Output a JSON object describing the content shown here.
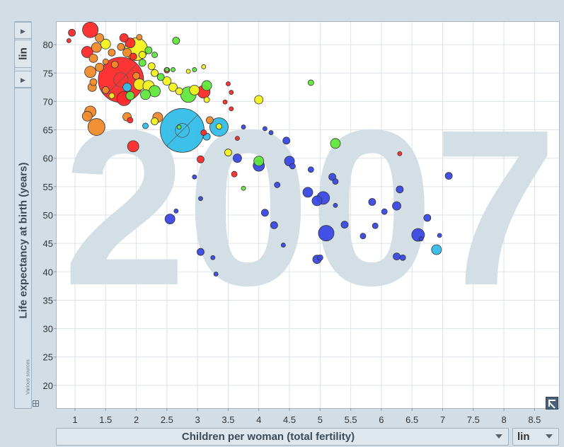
{
  "y_axis": {
    "scale": "lin",
    "label": "Life expectancy at birth (years)",
    "sources": "Various sources"
  },
  "x_axis": {
    "label": "Children per woman (total fertility)",
    "scale": "lin"
  },
  "chart_data": {
    "type": "scatter",
    "watermark": "2007",
    "xlabel": "Children per woman (total fertility)",
    "ylabel": "Life expectancy at birth (years)",
    "xlim": [
      0.7,
      8.9
    ],
    "ylim": [
      16,
      84
    ],
    "xticks": [
      "1",
      "1.5",
      "2",
      "2.5",
      "3",
      "3.5",
      "4",
      "4.5",
      "5",
      "5.5",
      "6",
      "6.5",
      "7",
      "7.5",
      "8",
      "8.5"
    ],
    "yticks": [
      "20",
      "25",
      "30",
      "35",
      "40",
      "45",
      "50",
      "55",
      "60",
      "65",
      "70",
      "75",
      "80"
    ],
    "grid": true,
    "colors": {
      "red": "#ff2a2a",
      "orange": "#f08a2a",
      "yellow": "#f2f21e",
      "green": "#62e83c",
      "cyan": "#33bde8",
      "blue": "#3a48e6"
    },
    "points": [
      {
        "x": 0.95,
        "y": 82.1,
        "s": 5,
        "c": "red"
      },
      {
        "x": 0.9,
        "y": 80.7,
        "s": 3,
        "c": "red"
      },
      {
        "x": 1.25,
        "y": 82.6,
        "s": 11,
        "c": "red"
      },
      {
        "x": 1.4,
        "y": 81.2,
        "s": 6,
        "c": "orange"
      },
      {
        "x": 1.35,
        "y": 79.5,
        "s": 7,
        "c": "orange"
      },
      {
        "x": 1.5,
        "y": 80.1,
        "s": 7,
        "c": "yellow"
      },
      {
        "x": 1.2,
        "y": 78.7,
        "s": 8,
        "c": "red"
      },
      {
        "x": 1.3,
        "y": 77.6,
        "s": 6,
        "c": "orange"
      },
      {
        "x": 1.6,
        "y": 78.6,
        "s": 5,
        "c": "orange"
      },
      {
        "x": 1.8,
        "y": 81.2,
        "s": 6,
        "c": "red"
      },
      {
        "x": 1.9,
        "y": 80.3,
        "s": 7,
        "c": "red"
      },
      {
        "x": 2.0,
        "y": 79.2,
        "s": 16,
        "c": "yellow"
      },
      {
        "x": 2.05,
        "y": 81.3,
        "s": 4,
        "c": "orange"
      },
      {
        "x": 2.1,
        "y": 78.2,
        "s": 5,
        "c": "yellow"
      },
      {
        "x": 2.2,
        "y": 79.0,
        "s": 5,
        "c": "green"
      },
      {
        "x": 1.75,
        "y": 79.6,
        "s": 5,
        "c": "orange"
      },
      {
        "x": 1.85,
        "y": 78.6,
        "s": 6,
        "c": "orange"
      },
      {
        "x": 1.95,
        "y": 77.9,
        "s": 5,
        "c": "red"
      },
      {
        "x": 2.3,
        "y": 78.2,
        "s": 4,
        "c": "green"
      },
      {
        "x": 2.1,
        "y": 76.8,
        "s": 5,
        "c": "green"
      },
      {
        "x": 2.25,
        "y": 76.2,
        "s": 5,
        "c": "yellow"
      },
      {
        "x": 2.3,
        "y": 75.0,
        "s": 5,
        "c": "yellow"
      },
      {
        "x": 2.4,
        "y": 74.3,
        "s": 5,
        "c": "green"
      },
      {
        "x": 2.5,
        "y": 75.5,
        "s": 4,
        "c": "red"
      },
      {
        "x": 2.5,
        "y": 75.6,
        "s": 3,
        "c": "green"
      },
      {
        "x": 2.6,
        "y": 75.6,
        "s": 3,
        "c": "green"
      },
      {
        "x": 2.95,
        "y": 75.6,
        "s": 3,
        "c": "green"
      },
      {
        "x": 2.85,
        "y": 75.3,
        "s": 3,
        "c": "yellow"
      },
      {
        "x": 3.1,
        "y": 76.1,
        "s": 3,
        "c": "yellow"
      },
      {
        "x": 2.65,
        "y": 80.7,
        "s": 5,
        "c": "green"
      },
      {
        "x": 1.25,
        "y": 75.2,
        "s": 8,
        "c": "orange"
      },
      {
        "x": 1.4,
        "y": 76.0,
        "s": 6,
        "c": "orange"
      },
      {
        "x": 1.3,
        "y": 73.4,
        "s": 5,
        "c": "orange"
      },
      {
        "x": 1.28,
        "y": 72.5,
        "s": 6,
        "c": "orange"
      },
      {
        "x": 1.5,
        "y": 72.0,
        "s": 5,
        "c": "orange"
      },
      {
        "x": 1.75,
        "y": 73.8,
        "s": 32,
        "c": "red"
      },
      {
        "x": 1.85,
        "y": 72.5,
        "s": 6,
        "c": "cyan"
      },
      {
        "x": 1.8,
        "y": 70.5,
        "s": 10,
        "c": "red"
      },
      {
        "x": 1.9,
        "y": 71.0,
        "s": 6,
        "c": "green"
      },
      {
        "x": 2.05,
        "y": 73.0,
        "s": 8,
        "c": "yellow"
      },
      {
        "x": 2.15,
        "y": 71.2,
        "s": 7,
        "c": "green"
      },
      {
        "x": 2.2,
        "y": 72.7,
        "s": 8,
        "c": "yellow"
      },
      {
        "x": 2.3,
        "y": 71.8,
        "s": 8,
        "c": "green"
      },
      {
        "x": 2.5,
        "y": 73.6,
        "s": 6,
        "c": "yellow"
      },
      {
        "x": 2.6,
        "y": 72.5,
        "s": 6,
        "c": "yellow"
      },
      {
        "x": 2.7,
        "y": 71.8,
        "s": 5,
        "c": "yellow"
      },
      {
        "x": 2.95,
        "y": 72.0,
        "s": 7,
        "c": "yellow"
      },
      {
        "x": 3.15,
        "y": 72.8,
        "s": 7,
        "c": "green"
      },
      {
        "x": 2.85,
        "y": 71.2,
        "s": 11,
        "c": "green"
      },
      {
        "x": 3.1,
        "y": 71.7,
        "s": 9,
        "c": "red"
      },
      {
        "x": 3.15,
        "y": 70.3,
        "s": 4,
        "c": "yellow"
      },
      {
        "x": 3.5,
        "y": 73.1,
        "s": 3,
        "c": "red"
      },
      {
        "x": 3.55,
        "y": 71.6,
        "s": 3,
        "c": "red"
      },
      {
        "x": 3.45,
        "y": 69.9,
        "s": 3,
        "c": "red"
      },
      {
        "x": 3.55,
        "y": 68.7,
        "s": 3,
        "c": "red"
      },
      {
        "x": 4.0,
        "y": 70.3,
        "s": 6,
        "c": "yellow"
      },
      {
        "x": 4.85,
        "y": 73.3,
        "s": 4,
        "c": "green"
      },
      {
        "x": 1.25,
        "y": 68.2,
        "s": 8,
        "c": "orange"
      },
      {
        "x": 1.2,
        "y": 67.4,
        "s": 7,
        "c": "orange"
      },
      {
        "x": 1.35,
        "y": 65.5,
        "s": 12,
        "c": "orange"
      },
      {
        "x": 1.85,
        "y": 67.3,
        "s": 6,
        "c": "orange"
      },
      {
        "x": 1.9,
        "y": 66.7,
        "s": 4,
        "c": "red"
      },
      {
        "x": 2.35,
        "y": 67.2,
        "s": 7,
        "c": "orange"
      },
      {
        "x": 2.3,
        "y": 66.5,
        "s": 5,
        "c": "yellow"
      },
      {
        "x": 2.15,
        "y": 65.7,
        "s": 4,
        "c": "cyan"
      },
      {
        "x": 2.75,
        "y": 64.9,
        "s": 31,
        "c": "cyan"
      },
      {
        "x": 2.7,
        "y": 65.5,
        "s": 3,
        "c": "green"
      },
      {
        "x": 3.2,
        "y": 66.7,
        "s": 5,
        "c": "orange"
      },
      {
        "x": 3.1,
        "y": 64.5,
        "s": 4,
        "c": "red"
      },
      {
        "x": 3.35,
        "y": 65.5,
        "s": 13,
        "c": "cyan"
      },
      {
        "x": 3.35,
        "y": 65.6,
        "s": 4,
        "c": "yellow"
      },
      {
        "x": 3.15,
        "y": 63.8,
        "s": 5,
        "c": "cyan"
      },
      {
        "x": 3.65,
        "y": 63.5,
        "s": 3,
        "c": "red"
      },
      {
        "x": 3.75,
        "y": 65.5,
        "s": 3,
        "c": "blue"
      },
      {
        "x": 4.1,
        "y": 65.2,
        "s": 3,
        "c": "blue"
      },
      {
        "x": 4.2,
        "y": 64.5,
        "s": 3,
        "c": "blue"
      },
      {
        "x": 4.45,
        "y": 63.1,
        "s": 5,
        "c": "blue"
      },
      {
        "x": 1.95,
        "y": 62.1,
        "s": 8,
        "c": "red"
      },
      {
        "x": 3.5,
        "y": 61.0,
        "s": 5,
        "c": "yellow"
      },
      {
        "x": 3.05,
        "y": 59.8,
        "s": 5,
        "c": "red"
      },
      {
        "x": 3.65,
        "y": 60.0,
        "s": 6,
        "c": "blue"
      },
      {
        "x": 4.0,
        "y": 59.5,
        "s": 7,
        "c": "green"
      },
      {
        "x": 4.0,
        "y": 58.7,
        "s": 8,
        "c": "blue"
      },
      {
        "x": 4.5,
        "y": 59.5,
        "s": 7,
        "c": "blue"
      },
      {
        "x": 4.55,
        "y": 58.6,
        "s": 4,
        "c": "blue"
      },
      {
        "x": 4.85,
        "y": 58.0,
        "s": 4,
        "c": "blue"
      },
      {
        "x": 5.25,
        "y": 62.6,
        "s": 7,
        "c": "green"
      },
      {
        "x": 6.3,
        "y": 60.8,
        "s": 3,
        "c": "red"
      },
      {
        "x": 2.95,
        "y": 56.7,
        "s": 3,
        "c": "blue"
      },
      {
        "x": 3.6,
        "y": 57.2,
        "s": 4,
        "c": "red"
      },
      {
        "x": 3.75,
        "y": 54.7,
        "s": 3,
        "c": "green"
      },
      {
        "x": 4.3,
        "y": 55.3,
        "s": 4,
        "c": "blue"
      },
      {
        "x": 4.8,
        "y": 54.0,
        "s": 7,
        "c": "blue"
      },
      {
        "x": 5.2,
        "y": 56.7,
        "s": 5,
        "c": "blue"
      },
      {
        "x": 5.25,
        "y": 55.9,
        "s": 4,
        "c": "blue"
      },
      {
        "x": 5.05,
        "y": 53.0,
        "s": 9,
        "c": "blue"
      },
      {
        "x": 4.95,
        "y": 52.5,
        "s": 7,
        "c": "blue"
      },
      {
        "x": 5.25,
        "y": 51.7,
        "s": 3,
        "c": "blue"
      },
      {
        "x": 5.85,
        "y": 52.3,
        "s": 5,
        "c": "blue"
      },
      {
        "x": 6.3,
        "y": 54.5,
        "s": 5,
        "c": "blue"
      },
      {
        "x": 6.25,
        "y": 51.6,
        "s": 6,
        "c": "blue"
      },
      {
        "x": 7.1,
        "y": 56.9,
        "s": 5,
        "c": "blue"
      },
      {
        "x": 6.05,
        "y": 50.6,
        "s": 4,
        "c": "blue"
      },
      {
        "x": 3.05,
        "y": 52.9,
        "s": 3,
        "c": "blue"
      },
      {
        "x": 2.65,
        "y": 50.7,
        "s": 3,
        "c": "blue"
      },
      {
        "x": 4.1,
        "y": 50.4,
        "s": 5,
        "c": "blue"
      },
      {
        "x": 2.55,
        "y": 49.3,
        "s": 7,
        "c": "blue"
      },
      {
        "x": 4.25,
        "y": 48.2,
        "s": 5,
        "c": "blue"
      },
      {
        "x": 5.4,
        "y": 48.3,
        "s": 5,
        "c": "blue"
      },
      {
        "x": 5.9,
        "y": 48.1,
        "s": 4,
        "c": "blue"
      },
      {
        "x": 5.1,
        "y": 46.8,
        "s": 11,
        "c": "blue"
      },
      {
        "x": 5.7,
        "y": 46.3,
        "s": 4,
        "c": "blue"
      },
      {
        "x": 6.75,
        "y": 49.5,
        "s": 5,
        "c": "blue"
      },
      {
        "x": 6.6,
        "y": 46.5,
        "s": 9,
        "c": "blue"
      },
      {
        "x": 6.65,
        "y": 45.8,
        "s": 3,
        "c": "blue"
      },
      {
        "x": 6.95,
        "y": 46.4,
        "s": 3,
        "c": "blue"
      },
      {
        "x": 4.4,
        "y": 44.7,
        "s": 3,
        "c": "blue"
      },
      {
        "x": 3.05,
        "y": 43.5,
        "s": 5,
        "c": "blue"
      },
      {
        "x": 3.25,
        "y": 42.5,
        "s": 3,
        "c": "blue"
      },
      {
        "x": 4.95,
        "y": 42.2,
        "s": 6,
        "c": "blue"
      },
      {
        "x": 5.0,
        "y": 42.5,
        "s": 4,
        "c": "blue"
      },
      {
        "x": 6.25,
        "y": 42.7,
        "s": 5,
        "c": "blue"
      },
      {
        "x": 6.35,
        "y": 42.5,
        "s": 4,
        "c": "blue"
      },
      {
        "x": 6.9,
        "y": 43.9,
        "s": 7,
        "c": "cyan"
      },
      {
        "x": 3.3,
        "y": 39.6,
        "s": 3,
        "c": "blue"
      },
      {
        "x": 1.5,
        "y": 77.0,
        "s": 4,
        "c": "orange"
      },
      {
        "x": 1.65,
        "y": 76.5,
        "s": 5,
        "c": "orange"
      },
      {
        "x": 2.0,
        "y": 74.5,
        "s": 5,
        "c": "orange"
      },
      {
        "x": 1.6,
        "y": 71.0,
        "s": 4,
        "c": "yellow"
      }
    ]
  }
}
